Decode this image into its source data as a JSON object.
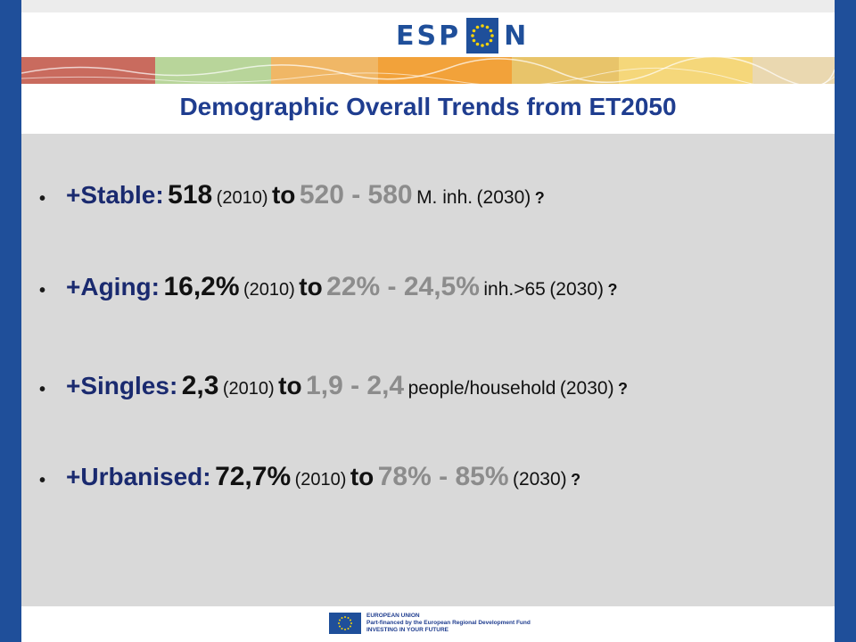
{
  "header": {
    "logo": "ESPON"
  },
  "title": "Demographic Overall Trends from ET2050",
  "bullets": [
    {
      "label": "+Stable:",
      "value_2010": "518",
      "year_2010": "(2010)",
      "to": "to",
      "range": "520 - 580",
      "unit": "M. inh.",
      "year_2030": "(2030)",
      "q": "?"
    },
    {
      "label": "+Aging:",
      "value_2010": "16,2%",
      "year_2010": "(2010)",
      "to": "to",
      "range": "22% - 24,5%",
      "unit": "inh.>65",
      "year_2030": "(2030)",
      "q": "?"
    },
    {
      "label": "+Singles:",
      "value_2010": "2,3",
      "year_2010": "(2010)",
      "to": "to",
      "range": "1,9 - 2,4",
      "unit": "people/household",
      "year_2030": "(2030)",
      "q": "?"
    },
    {
      "label": "+Urbanised:",
      "value_2010": "72,7%",
      "year_2010": "(2010)",
      "to": "to",
      "range": "78% - 85%",
      "unit": "",
      "year_2030": "(2030)",
      "q": "?"
    }
  ],
  "footer": {
    "line1": "EUROPEAN UNION",
    "line2": "Part-financed by the European Regional Development Fund",
    "line3": "INVESTING IN YOUR FUTURE"
  },
  "colors": {
    "side_bar": "#1f4f9a",
    "title": "#1f3d8f",
    "content_bg": "#d9d9d9",
    "range_grey": "#8c8c8c"
  }
}
